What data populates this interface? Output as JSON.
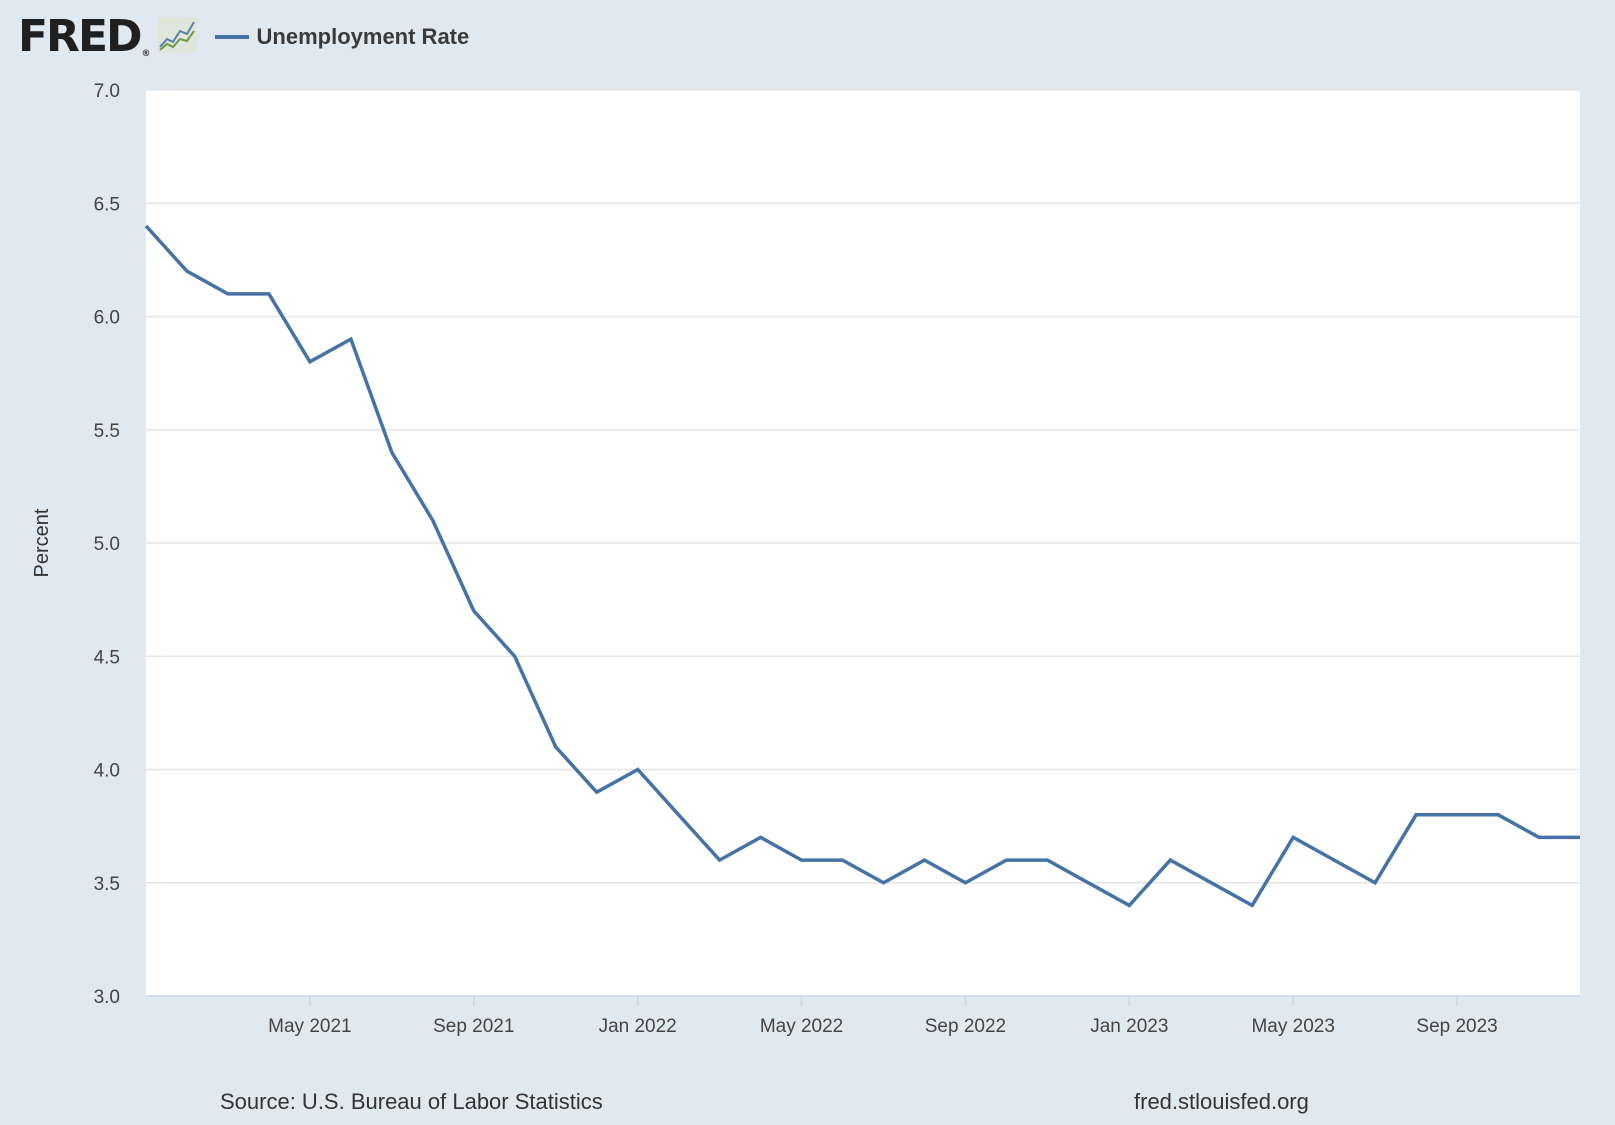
{
  "header": {
    "logo_text": "FRED",
    "logo_reg": "®",
    "logo_icon": "fred-chart-icon",
    "legend_label": "Unemployment Rate"
  },
  "footer": {
    "source": "Source: U.S. Bureau of Labor Statistics",
    "site": "fred.stlouisfed.org"
  },
  "colors": {
    "background": "#e1e9f0",
    "plot_background": "#ffffff",
    "series": "#4572a7",
    "grid": "#e6e6e6"
  },
  "chart_data": {
    "type": "line",
    "title": "",
    "xlabel": "",
    "ylabel": "Percent",
    "ylim": [
      3.0,
      7.0
    ],
    "xlim": [
      "2021-01",
      "2023-12"
    ],
    "yticks": [
      "3.0",
      "3.5",
      "4.0",
      "4.5",
      "5.0",
      "5.5",
      "6.0",
      "6.5",
      "7.0"
    ],
    "xticks": [
      {
        "date": "2021-05",
        "label": "May 2021"
      },
      {
        "date": "2021-09",
        "label": "Sep 2021"
      },
      {
        "date": "2022-01",
        "label": "Jan 2022"
      },
      {
        "date": "2022-05",
        "label": "May 2022"
      },
      {
        "date": "2022-09",
        "label": "Sep 2022"
      },
      {
        "date": "2023-01",
        "label": "Jan 2023"
      },
      {
        "date": "2023-05",
        "label": "May 2023"
      },
      {
        "date": "2023-09",
        "label": "Sep 2023"
      }
    ],
    "grid": true,
    "legend": "top-left",
    "series": [
      {
        "name": "Unemployment Rate",
        "x": [
          "2021-01",
          "2021-02",
          "2021-03",
          "2021-04",
          "2021-05",
          "2021-06",
          "2021-07",
          "2021-08",
          "2021-09",
          "2021-10",
          "2021-11",
          "2021-12",
          "2022-01",
          "2022-02",
          "2022-03",
          "2022-04",
          "2022-05",
          "2022-06",
          "2022-07",
          "2022-08",
          "2022-09",
          "2022-10",
          "2022-11",
          "2022-12",
          "2023-01",
          "2023-02",
          "2023-03",
          "2023-04",
          "2023-05",
          "2023-06",
          "2023-07",
          "2023-08",
          "2023-09",
          "2023-10",
          "2023-11",
          "2023-12"
        ],
        "values": [
          6.4,
          6.2,
          6.1,
          6.1,
          5.8,
          5.9,
          5.4,
          5.1,
          4.7,
          4.5,
          4.1,
          3.9,
          4.0,
          3.8,
          3.6,
          3.7,
          3.6,
          3.6,
          3.5,
          3.6,
          3.5,
          3.6,
          3.6,
          3.5,
          3.4,
          3.6,
          3.5,
          3.4,
          3.7,
          3.6,
          3.5,
          3.8,
          3.8,
          3.8,
          3.7,
          3.7
        ]
      }
    ]
  }
}
